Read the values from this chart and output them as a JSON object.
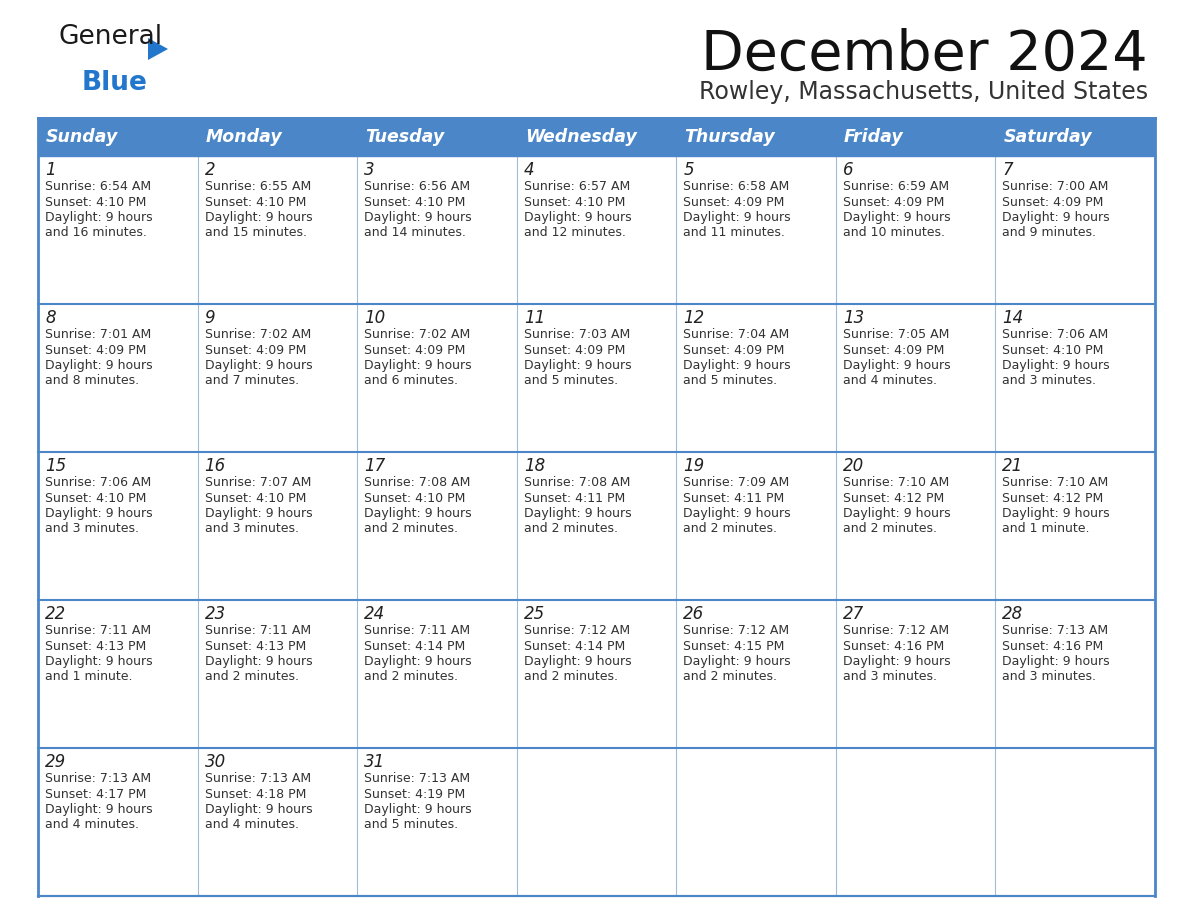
{
  "title": "December 2024",
  "subtitle": "Rowley, Massachusetts, United States",
  "days_of_week": [
    "Sunday",
    "Monday",
    "Tuesday",
    "Wednesday",
    "Thursday",
    "Friday",
    "Saturday"
  ],
  "header_bg": "#4a86c8",
  "header_text": "#ffffff",
  "cell_bg": "#ffffff",
  "border_color": "#4a86c8",
  "divider_color": "#a0bcd8",
  "text_color": "#333333",
  "calendar_data": [
    [
      {
        "day": 1,
        "sunrise": "6:54 AM",
        "sunset": "4:10 PM",
        "daylight": "9 hours and 16 minutes."
      },
      {
        "day": 2,
        "sunrise": "6:55 AM",
        "sunset": "4:10 PM",
        "daylight": "9 hours and 15 minutes."
      },
      {
        "day": 3,
        "sunrise": "6:56 AM",
        "sunset": "4:10 PM",
        "daylight": "9 hours and 14 minutes."
      },
      {
        "day": 4,
        "sunrise": "6:57 AM",
        "sunset": "4:10 PM",
        "daylight": "9 hours and 12 minutes."
      },
      {
        "day": 5,
        "sunrise": "6:58 AM",
        "sunset": "4:09 PM",
        "daylight": "9 hours and 11 minutes."
      },
      {
        "day": 6,
        "sunrise": "6:59 AM",
        "sunset": "4:09 PM",
        "daylight": "9 hours and 10 minutes."
      },
      {
        "day": 7,
        "sunrise": "7:00 AM",
        "sunset": "4:09 PM",
        "daylight": "9 hours and 9 minutes."
      }
    ],
    [
      {
        "day": 8,
        "sunrise": "7:01 AM",
        "sunset": "4:09 PM",
        "daylight": "9 hours and 8 minutes."
      },
      {
        "day": 9,
        "sunrise": "7:02 AM",
        "sunset": "4:09 PM",
        "daylight": "9 hours and 7 minutes."
      },
      {
        "day": 10,
        "sunrise": "7:02 AM",
        "sunset": "4:09 PM",
        "daylight": "9 hours and 6 minutes."
      },
      {
        "day": 11,
        "sunrise": "7:03 AM",
        "sunset": "4:09 PM",
        "daylight": "9 hours and 5 minutes."
      },
      {
        "day": 12,
        "sunrise": "7:04 AM",
        "sunset": "4:09 PM",
        "daylight": "9 hours and 5 minutes."
      },
      {
        "day": 13,
        "sunrise": "7:05 AM",
        "sunset": "4:09 PM",
        "daylight": "9 hours and 4 minutes."
      },
      {
        "day": 14,
        "sunrise": "7:06 AM",
        "sunset": "4:10 PM",
        "daylight": "9 hours and 3 minutes."
      }
    ],
    [
      {
        "day": 15,
        "sunrise": "7:06 AM",
        "sunset": "4:10 PM",
        "daylight": "9 hours and 3 minutes."
      },
      {
        "day": 16,
        "sunrise": "7:07 AM",
        "sunset": "4:10 PM",
        "daylight": "9 hours and 3 minutes."
      },
      {
        "day": 17,
        "sunrise": "7:08 AM",
        "sunset": "4:10 PM",
        "daylight": "9 hours and 2 minutes."
      },
      {
        "day": 18,
        "sunrise": "7:08 AM",
        "sunset": "4:11 PM",
        "daylight": "9 hours and 2 minutes."
      },
      {
        "day": 19,
        "sunrise": "7:09 AM",
        "sunset": "4:11 PM",
        "daylight": "9 hours and 2 minutes."
      },
      {
        "day": 20,
        "sunrise": "7:10 AM",
        "sunset": "4:12 PM",
        "daylight": "9 hours and 2 minutes."
      },
      {
        "day": 21,
        "sunrise": "7:10 AM",
        "sunset": "4:12 PM",
        "daylight": "9 hours and 1 minute."
      }
    ],
    [
      {
        "day": 22,
        "sunrise": "7:11 AM",
        "sunset": "4:13 PM",
        "daylight": "9 hours and 1 minute."
      },
      {
        "day": 23,
        "sunrise": "7:11 AM",
        "sunset": "4:13 PM",
        "daylight": "9 hours and 2 minutes."
      },
      {
        "day": 24,
        "sunrise": "7:11 AM",
        "sunset": "4:14 PM",
        "daylight": "9 hours and 2 minutes."
      },
      {
        "day": 25,
        "sunrise": "7:12 AM",
        "sunset": "4:14 PM",
        "daylight": "9 hours and 2 minutes."
      },
      {
        "day": 26,
        "sunrise": "7:12 AM",
        "sunset": "4:15 PM",
        "daylight": "9 hours and 2 minutes."
      },
      {
        "day": 27,
        "sunrise": "7:12 AM",
        "sunset": "4:16 PM",
        "daylight": "9 hours and 3 minutes."
      },
      {
        "day": 28,
        "sunrise": "7:13 AM",
        "sunset": "4:16 PM",
        "daylight": "9 hours and 3 minutes."
      }
    ],
    [
      {
        "day": 29,
        "sunrise": "7:13 AM",
        "sunset": "4:17 PM",
        "daylight": "9 hours and 4 minutes."
      },
      {
        "day": 30,
        "sunrise": "7:13 AM",
        "sunset": "4:18 PM",
        "daylight": "9 hours and 4 minutes."
      },
      {
        "day": 31,
        "sunrise": "7:13 AM",
        "sunset": "4:19 PM",
        "daylight": "9 hours and 5 minutes."
      },
      null,
      null,
      null,
      null
    ]
  ],
  "logo_color_general": "#1a1a1a",
  "logo_color_blue": "#2277cc"
}
